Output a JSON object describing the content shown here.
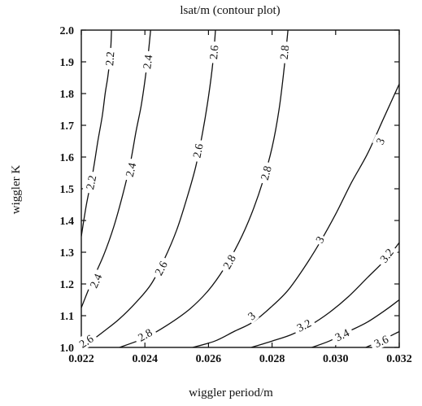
{
  "chart_data": {
    "type": "contour",
    "title": "lsat/m  (contour plot)",
    "xlabel": "wiggler period/m",
    "ylabel": "wiggler K",
    "xlim": [
      0.022,
      0.032
    ],
    "ylim": [
      1.0,
      2.0
    ],
    "xticks": [
      "0.022",
      "0.024",
      "0.026",
      "0.028",
      "0.030",
      "0.032"
    ],
    "yticks": [
      "1.0",
      "1.1",
      "1.2",
      "1.3",
      "1.4",
      "1.5",
      "1.6",
      "1.7",
      "1.8",
      "1.9",
      "2.0"
    ],
    "grid": false,
    "series": [
      {
        "name": "2.2",
        "x": [
          0.022,
          0.02216,
          0.02236,
          0.02252,
          0.02266,
          0.02275,
          0.02283,
          0.02289,
          0.02293,
          0.02295
        ],
        "y": [
          1.35,
          1.45,
          1.55,
          1.65,
          1.73,
          1.8,
          1.85,
          1.9,
          1.95,
          2.0
        ],
        "labels": [
          {
            "text": "2.2",
            "at": [
              0.0223,
              1.52
            ]
          },
          {
            "text": "2.2",
            "at": [
              0.02289,
              1.91
            ]
          }
        ]
      },
      {
        "name": "2.4",
        "x": [
          0.022,
          0.0223,
          0.0227,
          0.02302,
          0.0233,
          0.02354,
          0.02372,
          0.02388,
          0.024,
          0.0241,
          0.02418
        ],
        "y": [
          1.125,
          1.2,
          1.29,
          1.38,
          1.48,
          1.58,
          1.68,
          1.76,
          1.84,
          1.92,
          2.0
        ],
        "labels": [
          {
            "text": "2.4",
            "at": [
              0.02245,
              1.21
            ]
          },
          {
            "text": "2.4",
            "at": [
              0.02355,
              1.56
            ]
          },
          {
            "text": "2.4",
            "at": [
              0.02408,
              1.9
            ]
          }
        ]
      },
      {
        "name": "2.6",
        "x": [
          0.022,
          0.0223,
          0.0227,
          0.0232,
          0.02375,
          0.0242,
          0.02462,
          0.025,
          0.02532,
          0.0256,
          0.02582,
          0.026,
          0.02614,
          0.02622
        ],
        "y": [
          1.0,
          1.02,
          1.05,
          1.09,
          1.145,
          1.2,
          1.28,
          1.37,
          1.47,
          1.57,
          1.68,
          1.79,
          1.9,
          2.0
        ],
        "labels": [
          {
            "text": "2.6",
            "at": [
              0.02215,
              1.02
            ]
          },
          {
            "text": "2.6",
            "at": [
              0.0245,
              1.25
            ]
          },
          {
            "text": "2.6",
            "at": [
              0.02566,
              1.62
            ]
          },
          {
            "text": "2.6",
            "at": [
              0.02616,
              1.93
            ]
          }
        ]
      },
      {
        "name": "2.8",
        "x": [
          0.0232,
          0.024,
          0.0247,
          0.0254,
          0.026,
          0.0265,
          0.02695,
          0.02735,
          0.0277,
          0.028,
          0.02822,
          0.02838,
          0.0285
        ],
        "y": [
          1.0,
          1.03,
          1.07,
          1.12,
          1.18,
          1.25,
          1.33,
          1.42,
          1.52,
          1.63,
          1.75,
          1.88,
          2.0
        ],
        "labels": [
          {
            "text": "2.8",
            "at": [
              0.024,
              1.04
            ]
          },
          {
            "text": "2.8",
            "at": [
              0.02665,
              1.27
            ]
          },
          {
            "text": "2.8",
            "at": [
              0.0278,
              1.55
            ]
          },
          {
            "text": "2.8",
            "at": [
              0.02838,
              1.93
            ]
          }
        ]
      },
      {
        "name": "3",
        "x": [
          0.0255,
          0.0262,
          0.0268,
          0.0274,
          0.028,
          0.0285,
          0.029,
          0.0295,
          0.03,
          0.0305,
          0.031,
          0.0315,
          0.032
        ],
        "y": [
          1.0,
          1.02,
          1.05,
          1.08,
          1.13,
          1.18,
          1.25,
          1.33,
          1.42,
          1.52,
          1.61,
          1.72,
          1.83
        ],
        "labels": [
          {
            "text": "3",
            "at": [
              0.02735,
              1.1
            ]
          },
          {
            "text": "3",
            "at": [
              0.0295,
              1.34
            ]
          },
          {
            "text": "3",
            "at": [
              0.0314,
              1.65
            ]
          }
        ]
      },
      {
        "name": "3.2",
        "x": [
          0.02735,
          0.028,
          0.0286,
          0.0292,
          0.0298,
          0.0304,
          0.031,
          0.0316,
          0.032
        ],
        "y": [
          1.0,
          1.02,
          1.04,
          1.07,
          1.11,
          1.16,
          1.22,
          1.28,
          1.33
        ],
        "labels": [
          {
            "text": "3.2",
            "at": [
              0.029,
              1.07
            ]
          },
          {
            "text": "3.2",
            "at": [
              0.0316,
              1.29
            ]
          }
        ]
      },
      {
        "name": "3.4",
        "x": [
          0.02925,
          0.0298,
          0.0304,
          0.031,
          0.0316,
          0.032
        ],
        "y": [
          1.0,
          1.02,
          1.05,
          1.08,
          1.12,
          1.15
        ],
        "labels": [
          {
            "text": "3.4",
            "at": [
              0.0302,
              1.04
            ]
          }
        ]
      },
      {
        "name": "3.6",
        "x": [
          0.03095,
          0.0314,
          0.032
        ],
        "y": [
          1.0,
          1.02,
          1.05
        ],
        "labels": [
          {
            "text": "3.6",
            "at": [
              0.03143,
              1.02
            ]
          }
        ]
      }
    ]
  }
}
